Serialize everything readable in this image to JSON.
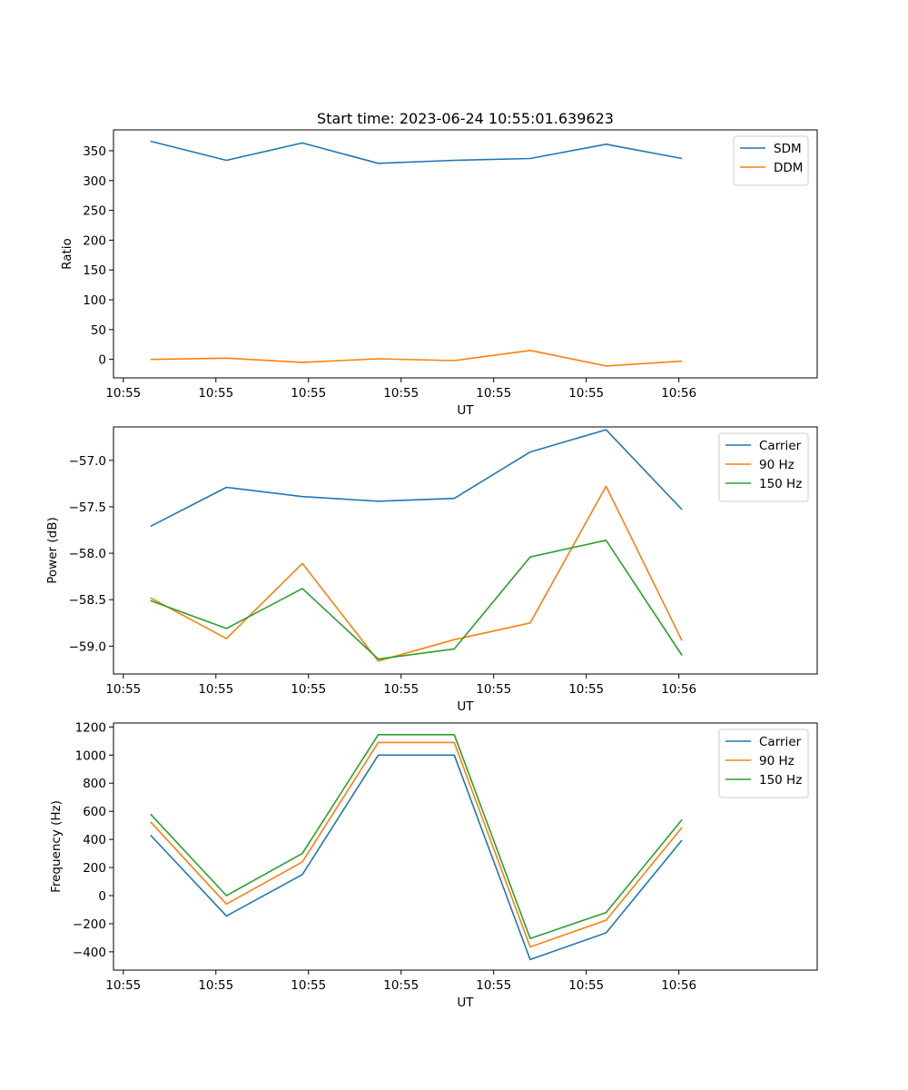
{
  "chart_data": [
    {
      "type": "line",
      "title": "Start time: 2023-06-24 10:55:01.639623",
      "xlabel": "UT",
      "ylabel": "Ratio",
      "x": [
        "10:55:01.64",
        "10:55:02.05",
        "10:55:02.46",
        "10:55:02.87",
        "10:55:03.28",
        "10:55:03.69",
        "10:55:04.10",
        "10:55:04.51"
      ],
      "x_tick_labels": [
        "10:55",
        "10:55",
        "10:55",
        "10:55",
        "10:55",
        "10:55",
        "10:56"
      ],
      "y_ticks": [
        0,
        50,
        100,
        150,
        200,
        250,
        300,
        350
      ],
      "ylim": [
        -31,
        385
      ],
      "legend_position": "top-right",
      "grid": false,
      "series": [
        {
          "name": "SDM",
          "color": "#1f77b4",
          "values": [
            366,
            334,
            363,
            329,
            334,
            337,
            361,
            337
          ]
        },
        {
          "name": "DDM",
          "color": "#ff7f0e",
          "values": [
            0,
            2,
            -5,
            1,
            -2,
            15,
            -11,
            -3
          ]
        }
      ]
    },
    {
      "type": "line",
      "title": "",
      "xlabel": "UT",
      "ylabel": "Power (dB)",
      "x": [
        "10:55:01.64",
        "10:55:02.05",
        "10:55:02.46",
        "10:55:02.87",
        "10:55:03.28",
        "10:55:03.69",
        "10:55:04.10",
        "10:55:04.51"
      ],
      "x_tick_labels": [
        "10:55",
        "10:55",
        "10:55",
        "10:55",
        "10:55",
        "10:55",
        "10:56"
      ],
      "y_ticks": [
        -59.0,
        -58.5,
        -58.0,
        -57.5,
        -57.0
      ],
      "y_tick_labels": [
        "−59.0",
        "−58.5",
        "−58.0",
        "−57.5",
        "−57.0"
      ],
      "ylim": [
        -59.3,
        -56.64
      ],
      "legend_position": "top-right",
      "grid": false,
      "series": [
        {
          "name": "Carrier",
          "color": "#1f77b4",
          "values": [
            -57.71,
            -57.29,
            -57.39,
            -57.44,
            -57.41,
            -56.91,
            -56.67,
            -57.53
          ]
        },
        {
          "name": "90 Hz",
          "color": "#ff7f0e",
          "values": [
            -58.48,
            -58.92,
            -58.11,
            -59.16,
            -58.93,
            -58.75,
            -57.28,
            -58.94
          ]
        },
        {
          "name": "150 Hz",
          "color": "#2ca02c",
          "values": [
            -58.51,
            -58.81,
            -58.38,
            -59.14,
            -59.03,
            -58.04,
            -57.86,
            -59.1
          ]
        }
      ]
    },
    {
      "type": "line",
      "title": "",
      "xlabel": "UT",
      "ylabel": "Frequency (Hz)",
      "x": [
        "10:55:01.64",
        "10:55:02.05",
        "10:55:02.46",
        "10:55:02.87",
        "10:55:03.28",
        "10:55:03.69",
        "10:55:04.10",
        "10:55:04.51"
      ],
      "x_tick_labels": [
        "10:55",
        "10:55",
        "10:55",
        "10:55",
        "10:55",
        "10:55",
        "10:56"
      ],
      "y_ticks": [
        -400,
        -200,
        0,
        200,
        400,
        600,
        800,
        1000,
        1200
      ],
      "y_tick_labels": [
        "−400",
        "−200",
        "0",
        "200",
        "400",
        "600",
        "800",
        "1000",
        "1200"
      ],
      "ylim": [
        -530,
        1228
      ],
      "legend_position": "top-right",
      "grid": false,
      "series": [
        {
          "name": "Carrier",
          "color": "#1f77b4",
          "values": [
            430,
            -145,
            150,
            1000,
            1000,
            -455,
            -265,
            395
          ]
        },
        {
          "name": "90 Hz",
          "color": "#ff7f0e",
          "values": [
            525,
            -60,
            240,
            1090,
            1090,
            -365,
            -175,
            485
          ]
        },
        {
          "name": "150 Hz",
          "color": "#2ca02c",
          "values": [
            580,
            0,
            300,
            1145,
            1145,
            -305,
            -120,
            540
          ]
        }
      ]
    }
  ]
}
